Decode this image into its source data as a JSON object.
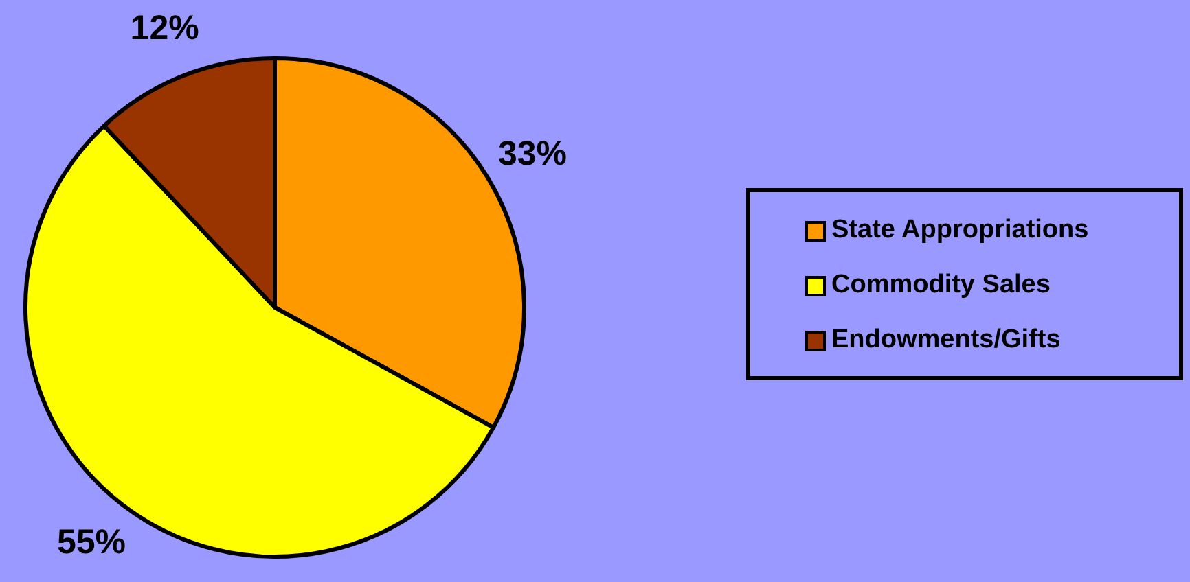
{
  "chart_data": {
    "type": "pie",
    "categories": [
      "State Appropriations",
      "Commodity Sales",
      "Endowments/Gifts"
    ],
    "values": [
      33,
      55,
      12
    ],
    "colors": [
      "#ff9900",
      "#ffff00",
      "#993300"
    ],
    "legend": "right",
    "value_labels": [
      "33%",
      "55%",
      "12%"
    ]
  }
}
